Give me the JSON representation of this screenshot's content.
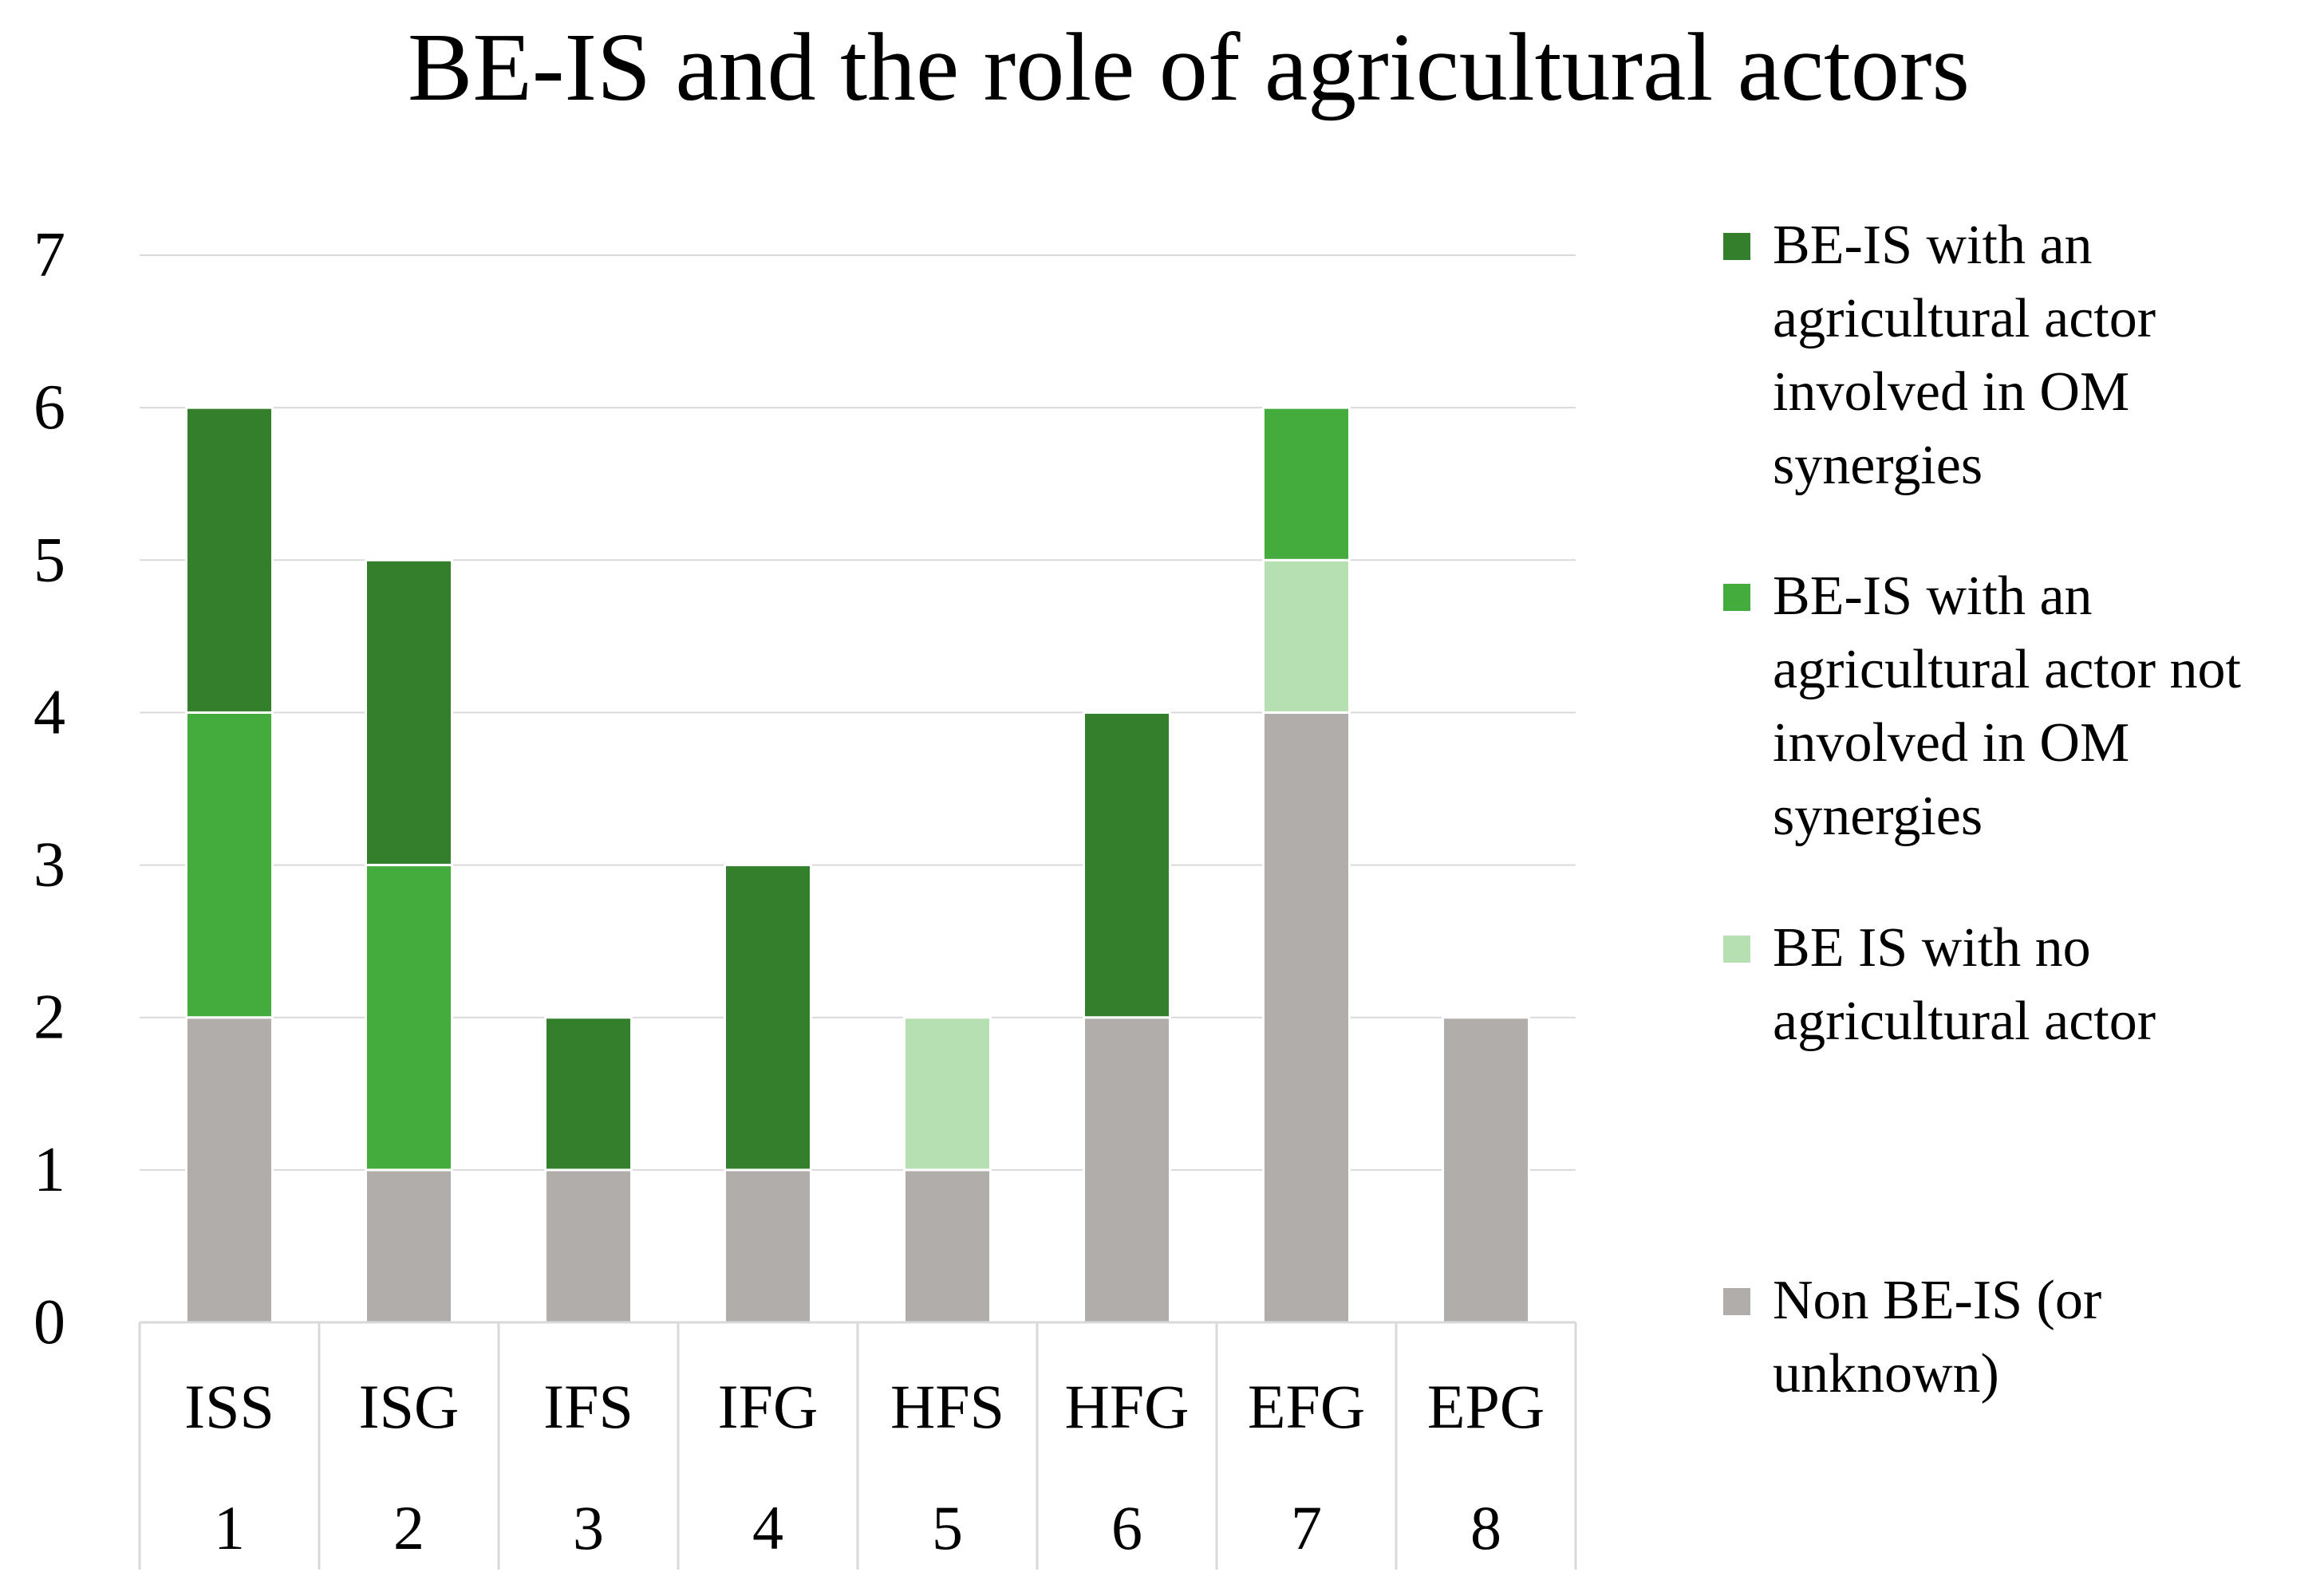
{
  "chart_data": {
    "type": "bar",
    "stacked": true,
    "title": "BE-IS and the role of agricultural actors",
    "xlabel": "",
    "ylabel": "",
    "ylim": [
      0,
      7
    ],
    "yticks": [
      "0",
      "1",
      "2",
      "3",
      "4",
      "5",
      "6",
      "7"
    ],
    "categories": [
      "ISS",
      "ISG",
      "IFS",
      "IFG",
      "HFS",
      "HFG",
      "EFG",
      "EPG"
    ],
    "category_numbers": [
      "1",
      "2",
      "3",
      "4",
      "5",
      "6",
      "7",
      "8"
    ],
    "grid": true,
    "legend_position": "right",
    "series": [
      {
        "name": "Non BE-IS (or unknown)",
        "color": "#b1adab",
        "values": [
          2,
          1,
          1,
          1,
          1,
          2,
          4,
          2
        ]
      },
      {
        "name": "BE IS with no agricultural actor",
        "color": "#b7e0b2",
        "values": [
          0,
          0,
          0,
          0,
          1,
          0,
          1,
          0
        ]
      },
      {
        "name": "BE-IS with an agricultural actor not involved in OM synergies",
        "color": "#44ac3c",
        "values": [
          2,
          2,
          0,
          0,
          0,
          0,
          1,
          0
        ]
      },
      {
        "name": "BE-IS with an agricultural actor involved in OM synergies",
        "color": "#337f2b",
        "values": [
          2,
          2,
          1,
          2,
          0,
          2,
          0,
          0
        ]
      }
    ],
    "legend_order": [
      3,
      2,
      1,
      0
    ]
  }
}
